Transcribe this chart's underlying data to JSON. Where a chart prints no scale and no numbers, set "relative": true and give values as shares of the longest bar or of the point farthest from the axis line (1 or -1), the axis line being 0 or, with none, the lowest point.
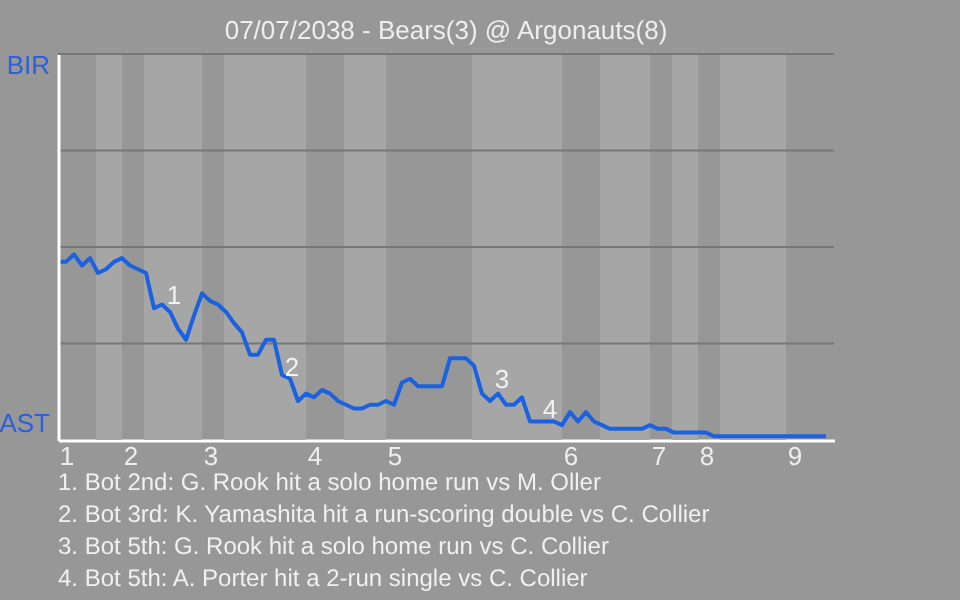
{
  "chart_data": {
    "type": "line",
    "title": "07/07/2038 - Bears(3) @ Argonauts(8)",
    "categories": [
      null,
      "1",
      null,
      null,
      null,
      null,
      null,
      null,
      null,
      "2",
      null,
      null,
      null,
      null,
      null,
      null,
      null,
      null,
      null,
      "3",
      null,
      null,
      null,
      null,
      null,
      null,
      null,
      null,
      null,
      null,
      null,
      null,
      "4",
      null,
      null,
      null,
      null,
      null,
      null,
      null,
      null,
      null,
      "5",
      null,
      null,
      null,
      null,
      null,
      null,
      null,
      null,
      null,
      null,
      null,
      null,
      null,
      null,
      null,
      null,
      null,
      null,
      null,
      null,
      null,
      "6",
      null,
      null,
      null,
      null,
      null,
      null,
      null,
      null,
      null,
      null,
      "7",
      null,
      null,
      null,
      null,
      null,
      "8",
      null,
      null,
      null,
      null,
      null,
      null,
      null,
      null,
      null,
      null,
      "9",
      null,
      null,
      null,
      null
    ],
    "relative": true,
    "ref_lines": [
      {
        "axis": "y",
        "value": 0.52,
        "color": "#777777"
      },
      {
        "axis": "y",
        "value": 1.04,
        "color": "#777777"
      },
      {
        "axis": "y",
        "value": 1.56,
        "color": "#777777"
      },
      {
        "axis": "y",
        "value": 2.08,
        "color": "#777777"
      }
    ],
    "series": [
      {
        "color": "#1a62e0",
        "values": [
          0.96,
          0.96,
          1,
          0.94,
          0.98,
          0.9,
          0.92,
          0.96,
          0.98,
          0.94,
          0.92,
          0.9,
          0.71,
          0.73,
          0.69,
          0.6,
          0.54,
          0.67,
          0.79,
          0.75,
          0.73,
          0.69,
          0.63,
          0.58,
          0.46,
          0.46,
          0.54,
          0.54,
          0.35,
          0.33,
          0.21,
          0.25,
          0.23,
          0.27,
          0.25,
          0.21,
          0.19,
          0.17,
          0.17,
          0.19,
          0.19,
          0.21,
          0.19,
          0.31,
          0.33,
          0.29,
          0.29,
          0.29,
          0.29,
          0.44,
          0.44,
          0.44,
          0.4,
          0.25,
          0.21,
          0.25,
          0.19,
          0.19,
          0.23,
          0.1,
          0.1,
          0.1,
          0.1,
          0.08,
          0.15,
          0.1,
          0.15,
          0.1,
          0.08,
          0.06,
          0.06,
          0.06,
          0.06,
          0.06,
          0.08,
          0.06,
          0.06,
          0.04,
          0.04,
          0.04,
          0.04,
          0.04,
          0.02,
          0.02,
          0.02,
          0.02,
          0.02,
          0.02,
          0.02,
          0.02,
          0.02,
          0.02,
          0.02,
          0.02,
          0.02,
          0.02,
          0.02
        ]
      }
    ],
    "annotations": [
      "BIR",
      "AST",
      "1",
      "2",
      "3",
      "4",
      "1. Bot 2nd: G. Rook hit a solo home run vs M. Oller",
      "2. Bot 3rd: K. Yamashita hit a run-scoring double vs C. Collier",
      "3. Bot 5th: G. Rook hit a solo home run vs C. Collier",
      "4. Bot 5th: A. Porter hit a 2-run single vs C. Collier"
    ]
  }
}
